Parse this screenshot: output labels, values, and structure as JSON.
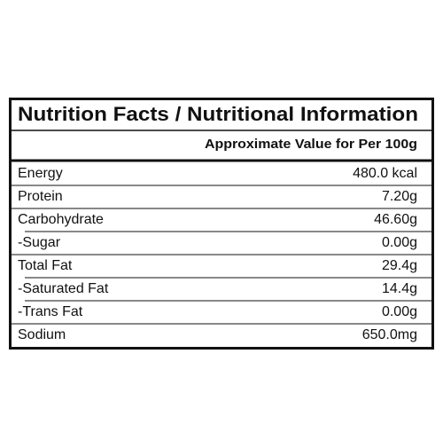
{
  "header": {
    "title": "Nutrition Facts / Nutritional Information",
    "subtitle": "Approximate Value for Per 100g"
  },
  "table": {
    "rows": [
      [
        "Energy",
        "480.0 kcal"
      ],
      [
        "Protein",
        "7.20g"
      ],
      [
        "Carbohydrate",
        "46.60g"
      ],
      [
        "-Sugar",
        "0.00g"
      ],
      [
        "Total Fat",
        "29.4g"
      ],
      [
        "-Saturated Fat",
        "14.4g"
      ],
      [
        "-Trans Fat",
        "0.00g"
      ],
      [
        "Sodium",
        "650.0mg"
      ]
    ]
  }
}
